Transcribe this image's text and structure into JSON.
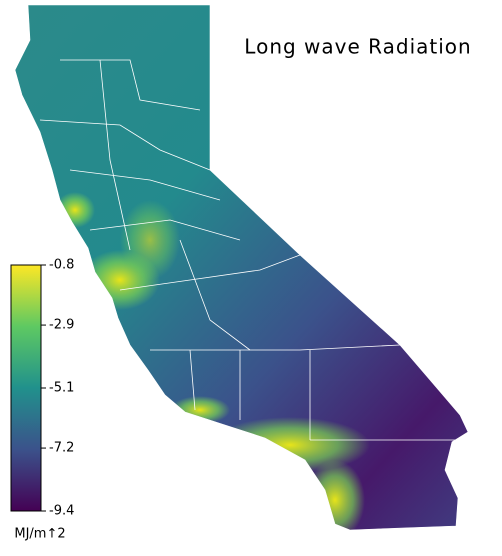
{
  "title": "Long wave Radiation",
  "colorbar": {
    "label": "MJ/m↑2",
    "lim": [
      -9.4,
      -0.8
    ],
    "ticks": [
      -0.8,
      -2.9,
      -5.1,
      -7.2,
      -9.4
    ]
  }
}
